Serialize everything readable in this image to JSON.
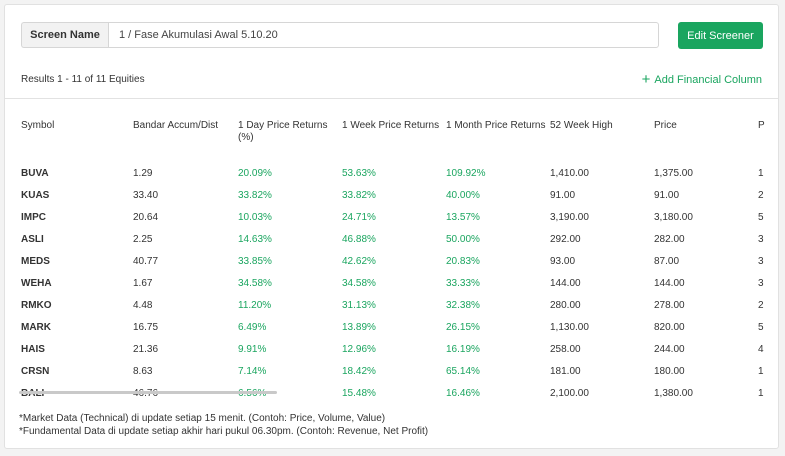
{
  "screen": {
    "label": "Screen Name",
    "value": "1 / Fase Akumulasi Awal 5.10.20",
    "edit_button": "Edit Screener"
  },
  "results_text": "Results 1 - 11 of 11 Equities",
  "add_column_label": "Add Financial Column",
  "columns": [
    "Symbol",
    "Bandar Accum/Dist",
    "1 Day Price Returns (%)",
    "1 Week Price Returns",
    "1 Month Price Returns",
    "52 Week High",
    "Price",
    "P"
  ],
  "rows": [
    [
      "BUVA",
      "1.29",
      "20.09%",
      "53.63%",
      "109.92%",
      "1,410.00",
      "1,375.00",
      "1"
    ],
    [
      "KUAS",
      "33.40",
      "33.82%",
      "33.82%",
      "40.00%",
      "91.00",
      "91.00",
      "2"
    ],
    [
      "IMPC",
      "20.64",
      "10.03%",
      "24.71%",
      "13.57%",
      "3,190.00",
      "3,180.00",
      "5"
    ],
    [
      "ASLI",
      "2.25",
      "14.63%",
      "46.88%",
      "50.00%",
      "292.00",
      "282.00",
      "3"
    ],
    [
      "MEDS",
      "40.77",
      "33.85%",
      "42.62%",
      "20.83%",
      "93.00",
      "87.00",
      "3"
    ],
    [
      "WEHA",
      "1.67",
      "34.58%",
      "34.58%",
      "33.33%",
      "144.00",
      "144.00",
      "3"
    ],
    [
      "RMKO",
      "4.48",
      "11.20%",
      "31.13%",
      "32.38%",
      "280.00",
      "278.00",
      "2"
    ],
    [
      "MARK",
      "16.75",
      "6.49%",
      "13.89%",
      "26.15%",
      "1,130.00",
      "820.00",
      "5"
    ],
    [
      "HAIS",
      "21.36",
      "9.91%",
      "12.96%",
      "16.19%",
      "258.00",
      "244.00",
      "4"
    ],
    [
      "CRSN",
      "8.63",
      "7.14%",
      "18.42%",
      "65.14%",
      "181.00",
      "180.00",
      "1"
    ],
    [
      "BALI",
      "46.76",
      "6.56%",
      "15.48%",
      "16.46%",
      "2,100.00",
      "1,380.00",
      "1"
    ]
  ],
  "notes": [
    "*Market Data (Technical) di update setiap 15 menit. (Contoh: Price, Volume, Value)",
    "*Fundamental Data di update setiap akhir hari pukul 06.30pm. (Contoh: Revenue, Net Profit)"
  ],
  "colors": {
    "accent": "#1aa55f",
    "positive": "#1aa55f"
  }
}
